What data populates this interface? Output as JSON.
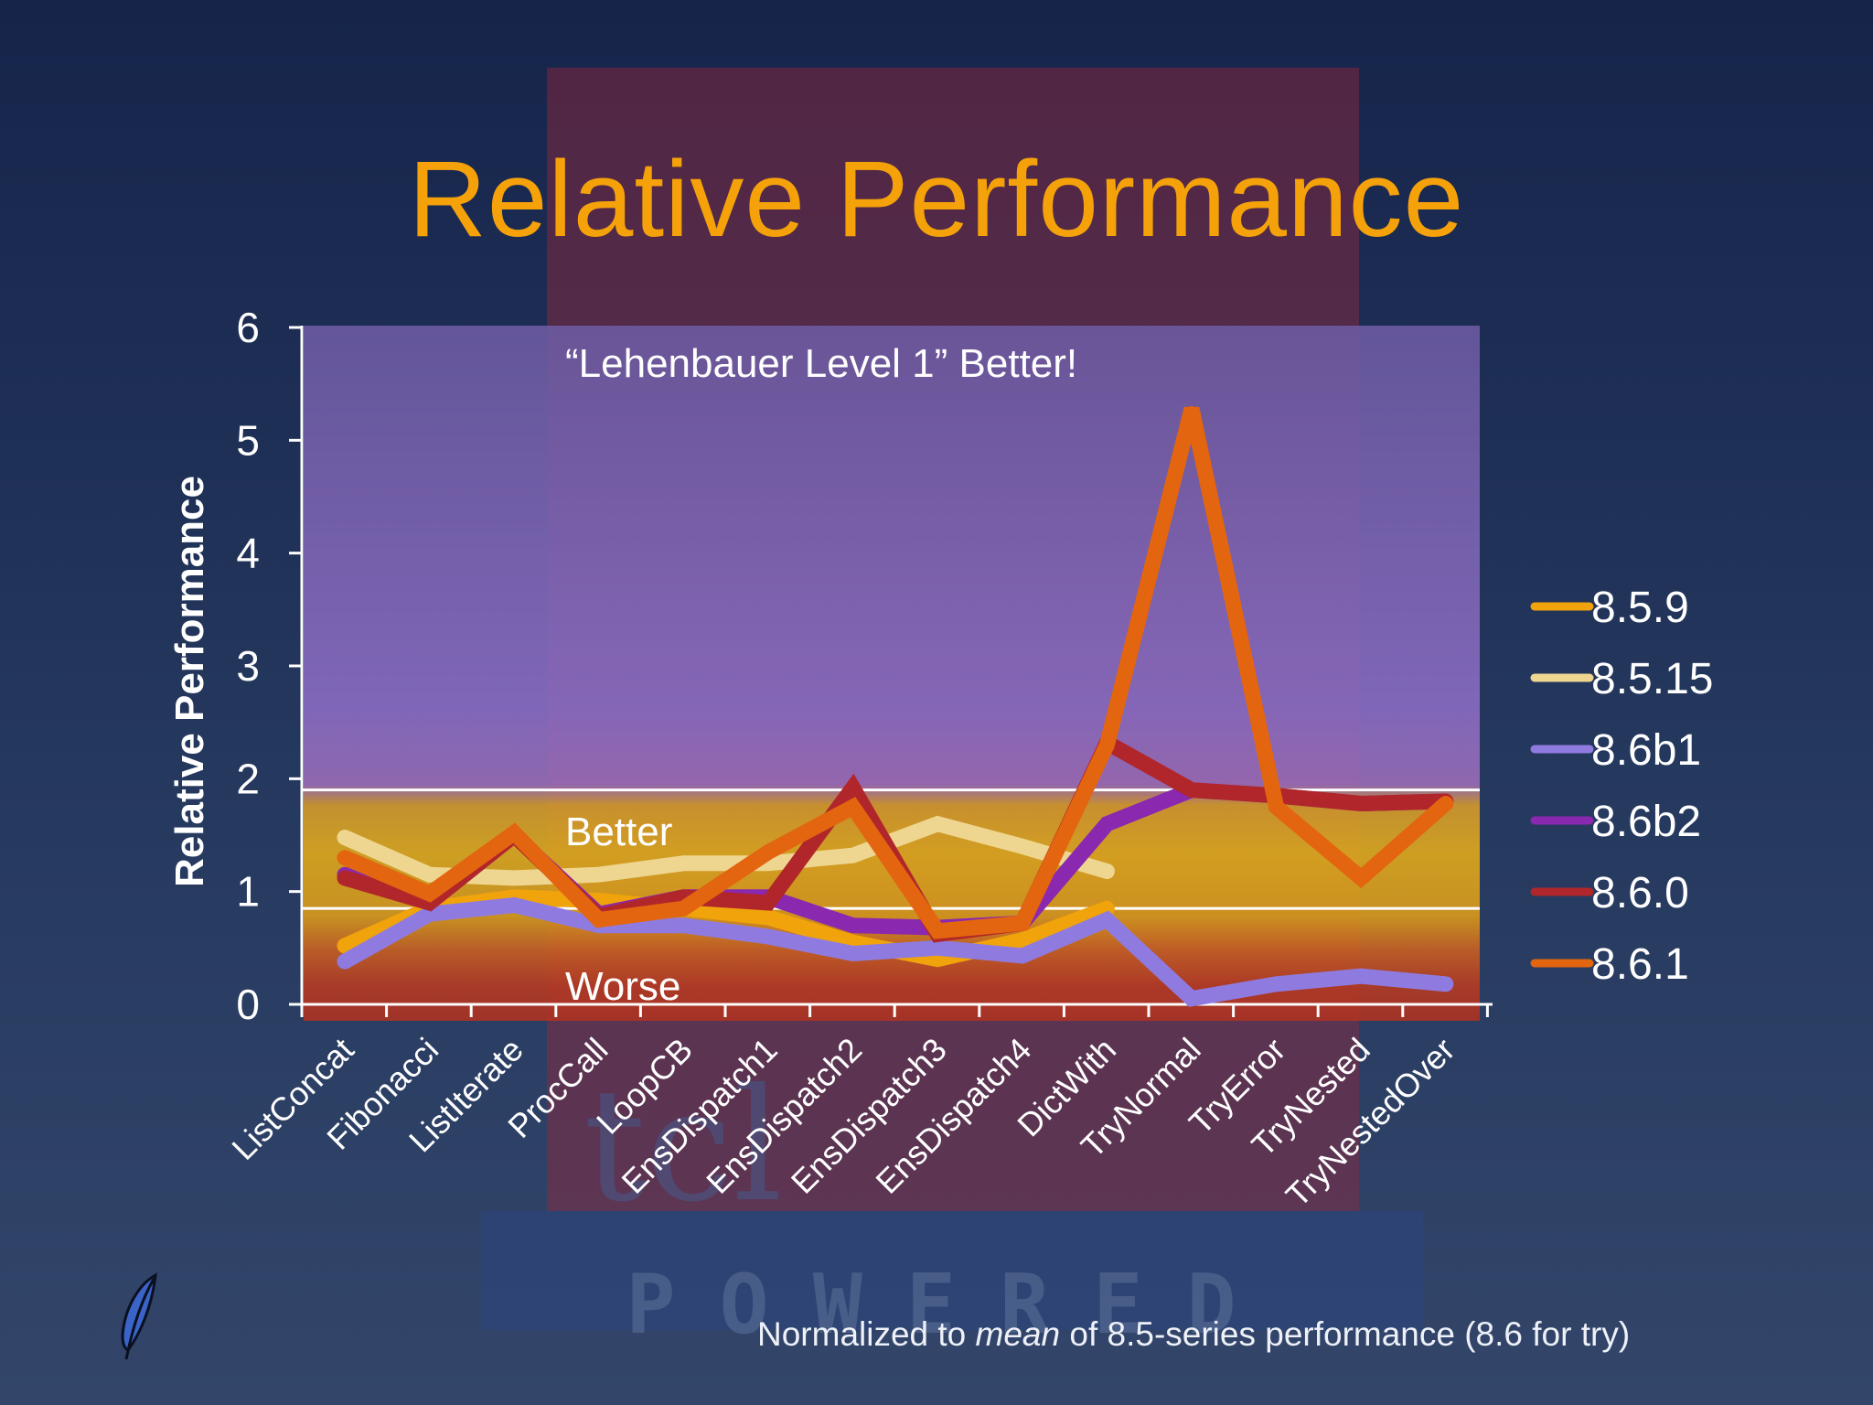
{
  "slide": {
    "title": "Relative Performance",
    "footnote_prefix": "Normalized to ",
    "footnote_emph": "mean",
    "footnote_suffix": " of 8.5-series performance (8.6 for try)",
    "background_logo_text": "POWERED",
    "background_logo_mark": "tcl",
    "colors": {
      "title": "#f5a20a",
      "better_zone": "#8a6cc2",
      "band_zone": "#e0aa1c",
      "worse_zone": "#b53a22"
    }
  },
  "chart_data": {
    "type": "line",
    "title": "",
    "xlabel": "",
    "ylabel": "Relative Performance",
    "ylim": [
      0,
      6
    ],
    "yticks": [
      0,
      1,
      2,
      3,
      4,
      5,
      6
    ],
    "grid": false,
    "legend_position": "right",
    "categories": [
      "ListConcat",
      "Fibonacci",
      "ListIterate",
      "ProcCall",
      "LoopCB",
      "EnsDispatch1",
      "EnsDispatch2",
      "EnsDispatch3",
      "EnsDispatch4",
      "DictWith",
      "TryNormal",
      "TryError",
      "TryNested",
      "TryNestedOver"
    ],
    "reference_lines": [
      1.9,
      0.85
    ],
    "annotations": {
      "top": "“Lehenbauer Level 1” Better!",
      "better": "Better",
      "worse": "Worse"
    },
    "series": [
      {
        "name": "8.5.9",
        "color": "#f0a30a",
        "values": [
          0.52,
          0.85,
          0.95,
          0.92,
          0.85,
          0.77,
          0.55,
          0.4,
          0.57,
          0.85,
          null,
          null,
          null,
          null
        ]
      },
      {
        "name": "8.5.15",
        "color": "#eed691",
        "values": [
          1.48,
          1.15,
          1.12,
          1.15,
          1.25,
          1.25,
          1.32,
          1.6,
          1.4,
          1.18,
          null,
          null,
          null,
          null
        ]
      },
      {
        "name": "8.6b1",
        "color": "#8f7be0",
        "values": [
          0.38,
          0.8,
          0.88,
          0.7,
          0.7,
          0.6,
          0.45,
          0.5,
          0.43,
          0.75,
          0.05,
          0.18,
          0.25,
          0.18
        ]
      },
      {
        "name": "8.6b2",
        "color": "#8a28b0",
        "values": [
          1.15,
          0.9,
          1.5,
          0.8,
          0.95,
          0.95,
          0.7,
          0.68,
          0.72,
          1.6,
          1.9,
          1.85,
          1.78,
          1.8
        ]
      },
      {
        "name": "8.6.0",
        "color": "#b1262a",
        "values": [
          1.12,
          0.9,
          1.5,
          0.78,
          0.95,
          0.9,
          1.92,
          0.62,
          0.72,
          2.32,
          1.9,
          1.85,
          1.78,
          1.8
        ]
      },
      {
        "name": "8.6.1",
        "color": "#e3650f",
        "values": [
          1.3,
          0.98,
          1.52,
          0.75,
          0.85,
          1.35,
          1.75,
          0.65,
          0.72,
          2.3,
          5.28,
          1.75,
          1.12,
          1.78
        ]
      }
    ]
  }
}
